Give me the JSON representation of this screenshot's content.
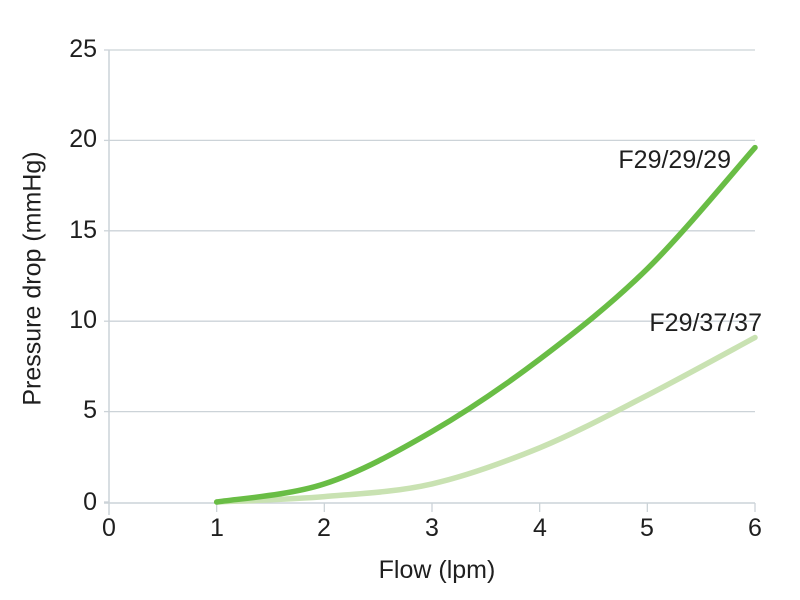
{
  "chart_data": {
    "type": "line",
    "title": "",
    "xlabel": "Flow (lpm)",
    "ylabel": "Pressure drop (mmHg)",
    "xlim": [
      0,
      6
    ],
    "ylim": [
      0,
      25
    ],
    "grid": "horizontal-only",
    "legend_position": "inline-labels-near-lines",
    "x_ticks": [
      0,
      1,
      2,
      3,
      4,
      5,
      6
    ],
    "y_ticks": [
      0,
      5,
      10,
      15,
      20,
      25
    ],
    "x_tick_labels": [
      "0",
      "1",
      "2",
      "3",
      "4",
      "5",
      "6"
    ],
    "y_tick_labels": [
      "0",
      "5",
      "10",
      "15",
      "20",
      "25"
    ],
    "series": [
      {
        "name": "F29/29/29",
        "color": "#69bd45",
        "x": [
          1,
          2,
          3,
          4,
          5,
          6
        ],
        "values": [
          0,
          1.0,
          3.9,
          7.9,
          12.9,
          19.6
        ]
      },
      {
        "name": "F29/37/37",
        "color": "#c9e2b2",
        "x": [
          1,
          2,
          3,
          4,
          5,
          6
        ],
        "values": [
          0,
          0.3,
          1.0,
          3.0,
          5.9,
          9.1
        ]
      }
    ],
    "colors": {
      "axis_and_grid": "#ccd3d8",
      "text": "#1f1f1f",
      "background": "#ffffff",
      "series_dark_green": "#69bd45",
      "series_light_green": "#c9e2b2"
    }
  }
}
